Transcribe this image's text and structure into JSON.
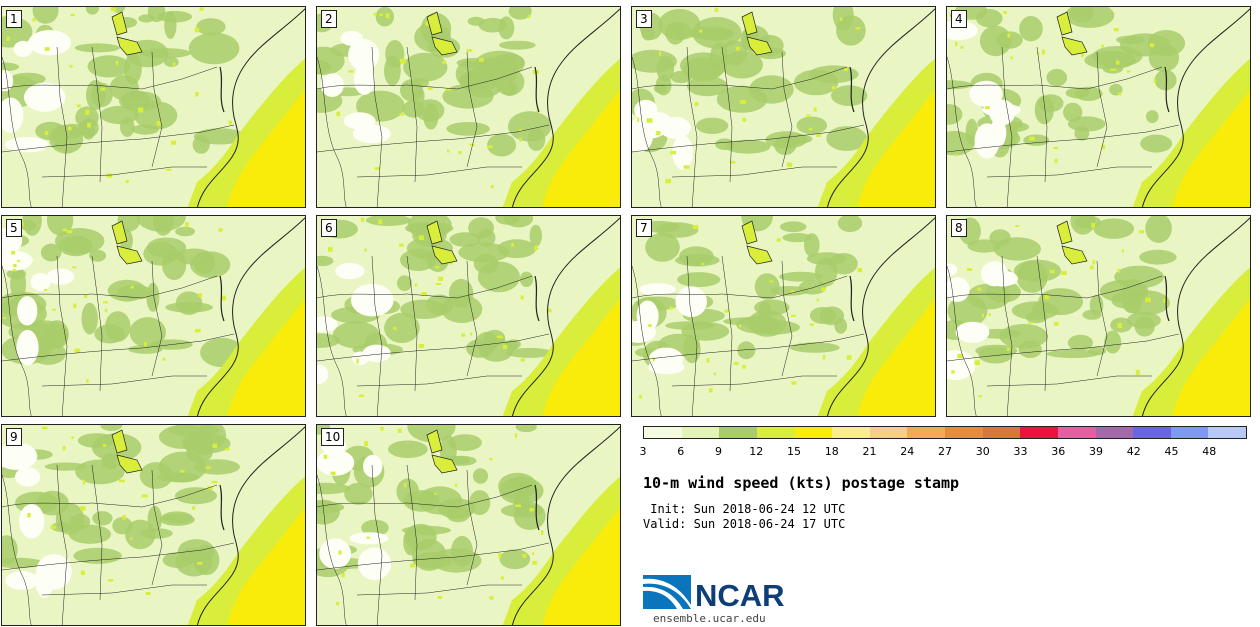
{
  "panels": [
    {
      "label": "1"
    },
    {
      "label": "2"
    },
    {
      "label": "3"
    },
    {
      "label": "4"
    },
    {
      "label": "5"
    },
    {
      "label": "6"
    },
    {
      "label": "7"
    },
    {
      "label": "8"
    },
    {
      "label": "9"
    },
    {
      "label": "10"
    }
  ],
  "colorbar": {
    "colors": [
      "#f5fbe0",
      "#e4f4b8",
      "#a8cc6a",
      "#d8ee3a",
      "#f9ec0a",
      "#faec90",
      "#f5cf8a",
      "#efac55",
      "#e88c3a",
      "#d9773a",
      "#e8163e",
      "#e75fa0",
      "#a26aa8",
      "#6a65e6",
      "#7f98f2",
      "#b9c9f5"
    ],
    "ticks": [
      "3",
      "6",
      "9",
      "12",
      "15",
      "18",
      "21",
      "24",
      "27",
      "30",
      "33",
      "36",
      "39",
      "42",
      "45",
      "48"
    ]
  },
  "title": "10-m wind speed (kts) postage stamp",
  "init": " Init: Sun 2018-06-24 12 UTC",
  "valid": "Valid: Sun 2018-06-24 17 UTC",
  "logo": {
    "text": "NCAR",
    "url": "ensemble.ucar.edu"
  }
}
